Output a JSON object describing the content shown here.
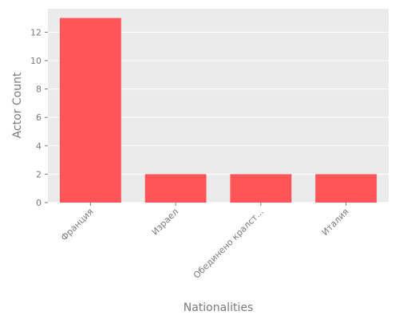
{
  "chart_data": {
    "type": "bar",
    "categories": [
      "Франция",
      "Израел",
      "Обединено кралст...",
      "Италия"
    ],
    "values": [
      13,
      2,
      2,
      2
    ],
    "title": "",
    "xlabel": "Nationalities",
    "ylabel": "Actor Count",
    "ylim": [
      0,
      13.65
    ],
    "yticks": [
      0,
      2,
      4,
      6,
      8,
      10,
      12
    ],
    "grid": true,
    "legend": "none",
    "colors": {
      "bar": "#ff5558",
      "plot_background": "#ebebeb",
      "grid": "#ffffff",
      "text": "#7a7a7a"
    }
  }
}
